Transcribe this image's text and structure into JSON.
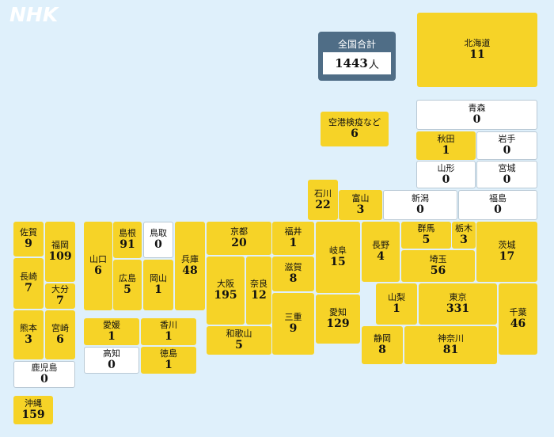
{
  "brand": "NHK",
  "total": {
    "label": "全国合計",
    "value": "1443",
    "unit": "人"
  },
  "airport": {
    "name": "空港検疫など",
    "count": "6"
  },
  "prefectures": [
    {
      "id": "hokkaido",
      "name": "北海道",
      "count": "11",
      "zero": false
    },
    {
      "id": "aomori",
      "name": "青森",
      "count": "0",
      "zero": true
    },
    {
      "id": "akita",
      "name": "秋田",
      "count": "1",
      "zero": false
    },
    {
      "id": "iwate",
      "name": "岩手",
      "count": "0",
      "zero": true
    },
    {
      "id": "yamagata",
      "name": "山形",
      "count": "0",
      "zero": true
    },
    {
      "id": "miyagi",
      "name": "宮城",
      "count": "0",
      "zero": true
    },
    {
      "id": "ishikawa",
      "name": "石川",
      "count": "22",
      "zero": false
    },
    {
      "id": "toyama",
      "name": "富山",
      "count": "3",
      "zero": false
    },
    {
      "id": "niigata",
      "name": "新潟",
      "count": "0",
      "zero": true
    },
    {
      "id": "fukushima",
      "name": "福島",
      "count": "0",
      "zero": true
    },
    {
      "id": "saga",
      "name": "佐賀",
      "count": "9",
      "zero": false
    },
    {
      "id": "fukuoka",
      "name": "福岡",
      "count": "109",
      "zero": false
    },
    {
      "id": "nagasaki",
      "name": "長崎",
      "count": "7",
      "zero": false
    },
    {
      "id": "oita",
      "name": "大分",
      "count": "7",
      "zero": false
    },
    {
      "id": "kumamoto",
      "name": "熊本",
      "count": "3",
      "zero": false
    },
    {
      "id": "miyazaki",
      "name": "宮崎",
      "count": "6",
      "zero": false
    },
    {
      "id": "kagoshima",
      "name": "鹿児島",
      "count": "0",
      "zero": true
    },
    {
      "id": "okinawa",
      "name": "沖縄",
      "count": "159",
      "zero": false
    },
    {
      "id": "yamaguchi",
      "name": "山口",
      "count": "6",
      "zero": false
    },
    {
      "id": "shimane",
      "name": "島根",
      "count": "91",
      "zero": false
    },
    {
      "id": "tottori",
      "name": "鳥取",
      "count": "0",
      "zero": true
    },
    {
      "id": "hiroshima",
      "name": "広島",
      "count": "5",
      "zero": false
    },
    {
      "id": "okayama",
      "name": "岡山",
      "count": "1",
      "zero": false
    },
    {
      "id": "hyogo",
      "name": "兵庫",
      "count": "48",
      "zero": false
    },
    {
      "id": "ehime",
      "name": "愛媛",
      "count": "1",
      "zero": false
    },
    {
      "id": "kagawa",
      "name": "香川",
      "count": "1",
      "zero": false
    },
    {
      "id": "kochi",
      "name": "高知",
      "count": "0",
      "zero": true
    },
    {
      "id": "tokushima",
      "name": "徳島",
      "count": "1",
      "zero": false
    },
    {
      "id": "kyoto",
      "name": "京都",
      "count": "20",
      "zero": false
    },
    {
      "id": "fukui",
      "name": "福井",
      "count": "1",
      "zero": false
    },
    {
      "id": "shiga",
      "name": "滋賀",
      "count": "8",
      "zero": false
    },
    {
      "id": "osaka",
      "name": "大阪",
      "count": "195",
      "zero": false
    },
    {
      "id": "nara",
      "name": "奈良",
      "count": "12",
      "zero": false
    },
    {
      "id": "mie",
      "name": "三重",
      "count": "9",
      "zero": false
    },
    {
      "id": "wakayama",
      "name": "和歌山",
      "count": "5",
      "zero": false
    },
    {
      "id": "gifu",
      "name": "岐阜",
      "count": "15",
      "zero": false
    },
    {
      "id": "aichi",
      "name": "愛知",
      "count": "129",
      "zero": false
    },
    {
      "id": "nagano",
      "name": "長野",
      "count": "4",
      "zero": false
    },
    {
      "id": "gunma",
      "name": "群馬",
      "count": "5",
      "zero": false
    },
    {
      "id": "tochigi",
      "name": "栃木",
      "count": "3",
      "zero": false
    },
    {
      "id": "ibaraki",
      "name": "茨城",
      "count": "17",
      "zero": false
    },
    {
      "id": "saitama",
      "name": "埼玉",
      "count": "56",
      "zero": false
    },
    {
      "id": "yamanashi",
      "name": "山梨",
      "count": "1",
      "zero": false
    },
    {
      "id": "tokyo",
      "name": "東京",
      "count": "331",
      "zero": false
    },
    {
      "id": "chiba",
      "name": "千葉",
      "count": "46",
      "zero": false
    },
    {
      "id": "shizuoka",
      "name": "静岡",
      "count": "8",
      "zero": false
    },
    {
      "id": "kanagawa",
      "name": "神奈川",
      "count": "81",
      "zero": false
    }
  ]
}
